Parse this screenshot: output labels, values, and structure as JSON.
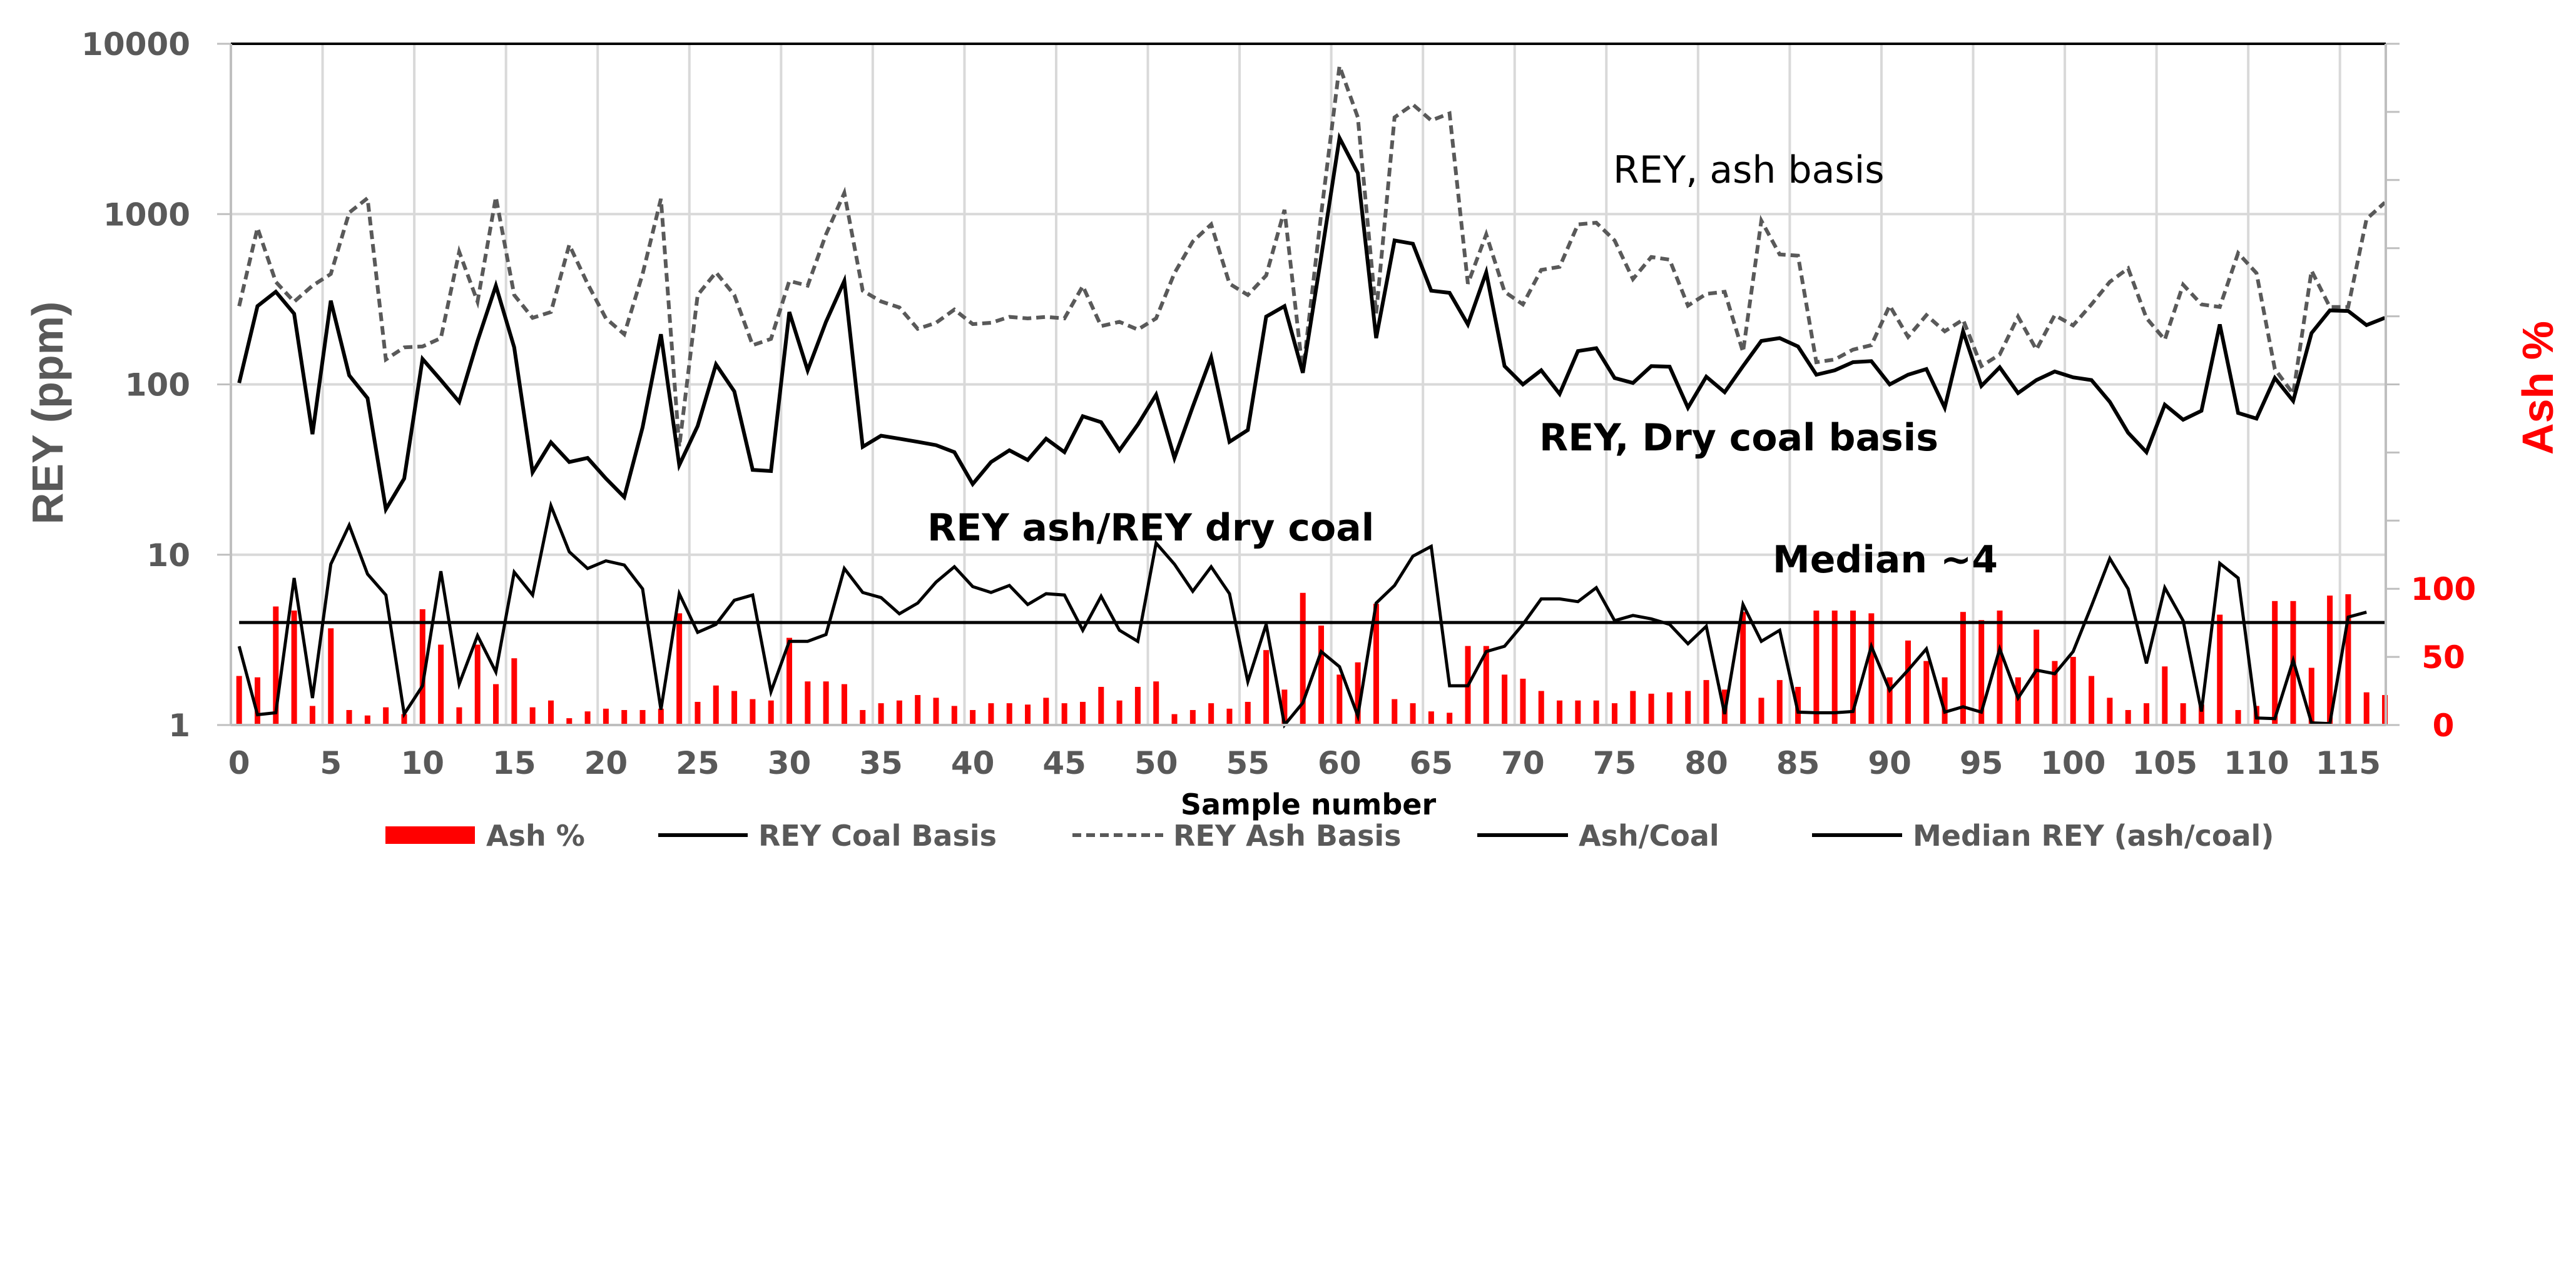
{
  "chart_data": {
    "type": "bar+line",
    "xlabel": "Sample number",
    "ylabel": "REY  (ppm)",
    "y2label": "Ash %",
    "yscale": "log",
    "ylim": [
      1,
      10000
    ],
    "y_ticks": [
      "1",
      "10",
      "100",
      "1000",
      "10000"
    ],
    "y2lim": [
      0,
      500
    ],
    "y2_tick_labels": [
      "0",
      "50",
      "100"
    ],
    "xlim": [
      0,
      117.5
    ],
    "x_ticks": [
      "0",
      "5",
      "10",
      "15",
      "20",
      "25",
      "30",
      "35",
      "40",
      "45",
      "50",
      "55",
      "60",
      "65",
      "70",
      "75",
      "80",
      "85",
      "90",
      "95",
      "100",
      "105",
      "110",
      "115"
    ],
    "grid": true,
    "legend_position": "bottom",
    "annotations": {
      "ash_basis": "REY, ash basis",
      "coal_basis": "REY, Dry coal basis",
      "ratio": "REY ash/REY dry coal",
      "median": "Median ~4"
    },
    "colors": {
      "ash": "#ff0000",
      "coal": "#000000",
      "ash_basis": "#595959",
      "ratio": "#000000",
      "median": "#000000"
    },
    "series": [
      {
        "name": "Ash %",
        "type": "bar",
        "axis": "right",
        "values": [
          36,
          35,
          87,
          84,
          14,
          71,
          11,
          7,
          13,
          8,
          85,
          59,
          13,
          59,
          30,
          49,
          13,
          18,
          5,
          10,
          12,
          11,
          11,
          12,
          82,
          17,
          29,
          25,
          19,
          18,
          64,
          32,
          32,
          30,
          11,
          16,
          18,
          22,
          20,
          14,
          11,
          16,
          16,
          15,
          20,
          16,
          17,
          28,
          18,
          28,
          32,
          8,
          11,
          16,
          12,
          17,
          55,
          26,
          97,
          73,
          37,
          46,
          89,
          19,
          16,
          10,
          9,
          58,
          58,
          37,
          34,
          25,
          18,
          18,
          18,
          16,
          25,
          23,
          24,
          25,
          33,
          26,
          83,
          20,
          33,
          28,
          84,
          84,
          84,
          82,
          35,
          62,
          47,
          35,
          83,
          77,
          84,
          35,
          70,
          47,
          50,
          36,
          20,
          11,
          16,
          43,
          16,
          15,
          81,
          11,
          14,
          91,
          91,
          42,
          95,
          96,
          24,
          22
        ]
      },
      {
        "name": "REY Coal Basis",
        "type": "line",
        "axis": "left",
        "values": [
          102,
          288,
          350,
          260,
          51,
          310,
          113,
          83,
          18.5,
          28,
          141,
          106,
          79,
          180,
          380,
          165,
          30.5,
          45.7,
          35,
          37,
          28,
          21.8,
          56,
          197,
          33.6,
          57,
          131,
          91,
          31.5,
          31,
          266,
          121,
          233,
          405,
          43,
          50,
          48,
          46,
          44,
          40,
          26,
          35,
          41,
          36,
          48,
          40,
          65,
          60,
          41,
          58,
          87,
          37,
          74,
          144,
          46,
          54,
          250,
          288,
          117,
          560,
          2800,
          1740,
          187,
          700,
          670,
          355,
          345,
          225,
          455,
          128,
          100,
          121,
          88,
          157,
          163,
          109,
          102,
          128,
          127,
          73,
          111,
          90,
          128,
          180,
          187,
          167,
          114,
          121,
          135,
          137,
          100,
          114,
          123,
          73,
          205,
          98,
          126,
          89,
          106,
          119,
          110,
          106,
          79,
          52,
          40,
          76,
          62,
          70,
          225,
          68,
          63,
          109,
          80,
          200,
          272,
          270,
          223,
          246
        ]
      },
      {
        "name": "REY Ash Basis",
        "type": "line",
        "dashed": true,
        "axis": "left",
        "values": [
          288,
          830,
          400,
          306,
          380,
          445,
          1020,
          1240,
          140,
          165,
          167,
          187,
          600,
          306,
          1260,
          335,
          246,
          266,
          660,
          390,
          244,
          197,
          445,
          1230,
          43,
          335,
          455,
          335,
          170,
          185,
          405,
          380,
          760,
          1330,
          355,
          307,
          283,
          212,
          230,
          275,
          226,
          230,
          249,
          244,
          249,
          244,
          378,
          220,
          233,
          210,
          244,
          450,
          690,
          870,
          390,
          335,
          436,
          1060,
          117,
          1000,
          7400,
          3700,
          260,
          3700,
          4400,
          3550,
          3900,
          390,
          760,
          350,
          295,
          470,
          490,
          870,
          890,
          700,
          415,
          560,
          540,
          290,
          340,
          350,
          155,
          915,
          580,
          570,
          135,
          140,
          160,
          170,
          290,
          190,
          255,
          205,
          240,
          128,
          150,
          250,
          160,
          255,
          222,
          295,
          400,
          480,
          245,
          183,
          385,
          295,
          285,
          590,
          450,
          123,
          88,
          465,
          285,
          285,
          935,
          1170
        ]
      },
      {
        "name": "Ash/Coal",
        "type": "line",
        "axis": "left",
        "values": [
          2.9,
          1.15,
          1.18,
          7.3,
          1.44,
          8.8,
          14.9,
          7.7,
          5.8,
          1.16,
          1.7,
          8.0,
          1.74,
          3.35,
          2.05,
          7.9,
          5.8,
          19.4,
          10.4,
          8.3,
          9.2,
          8.7,
          6.3,
          1.23,
          5.9,
          3.5,
          3.9,
          5.4,
          5.8,
          1.57,
          3.1,
          3.1,
          3.4,
          8.3,
          6.0,
          5.6,
          4.5,
          5.2,
          6.9,
          8.5,
          6.5,
          6.0,
          6.6,
          5.1,
          5.9,
          5.8,
          3.6,
          5.7,
          3.6,
          3.1,
          11.7,
          8.8,
          6.1,
          8.5,
          5.9,
          1.8,
          3.9,
          1.0,
          1.35,
          2.7,
          2.2,
          1.13,
          5.2,
          6.6,
          9.8,
          11.2,
          1.7,
          1.7,
          2.7,
          2.9,
          3.9,
          5.5,
          5.5,
          5.3,
          6.4,
          4.1,
          4.4,
          4.2,
          3.9,
          3.0,
          3.8,
          1.16,
          5.1,
          3.1,
          3.6,
          1.19,
          1.18,
          1.18,
          1.2,
          2.9,
          1.6,
          2.1,
          2.8,
          1.19,
          1.28,
          1.19,
          2.8,
          1.44,
          2.1,
          2.0,
          2.7,
          5.0,
          9.5,
          6.3,
          2.3,
          6.4,
          4.1,
          1.2,
          8.9,
          7.3,
          1.1,
          1.09,
          2.4,
          1.03,
          1.02,
          4.3,
          4.6,
          null
        ]
      },
      {
        "name": "Median REY (ash/coal)",
        "type": "line",
        "axis": "left",
        "constant": 4
      }
    ]
  }
}
